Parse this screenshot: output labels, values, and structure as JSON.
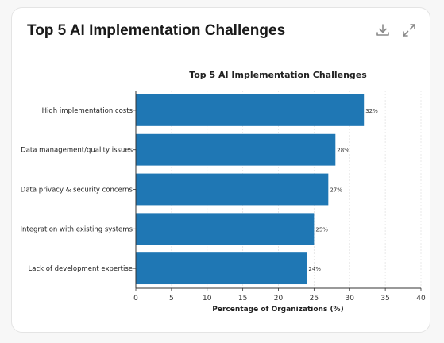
{
  "card": {
    "title": "Top 5 AI Implementation Challenges",
    "download_icon": "download-icon",
    "expand_icon": "expand-icon"
  },
  "chart_data": {
    "type": "bar",
    "orientation": "horizontal",
    "title": "Top 5 AI Implementation Challenges",
    "xlabel": "Percentage of Organizations (%)",
    "ylabel": "",
    "categories": [
      "High implementation costs",
      "Data management/quality issues",
      "Data privacy & security concerns",
      "Integration with existing systems",
      "Lack of development expertise"
    ],
    "values": [
      32,
      28,
      27,
      25,
      24
    ],
    "value_labels": [
      "32%",
      "28%",
      "27%",
      "25%",
      "24%"
    ],
    "xlim": [
      0,
      40
    ],
    "xticks": [
      0,
      5,
      10,
      15,
      20,
      25,
      30,
      35,
      40
    ],
    "grid": "vertical",
    "bar_color": "#1f77b4"
  }
}
